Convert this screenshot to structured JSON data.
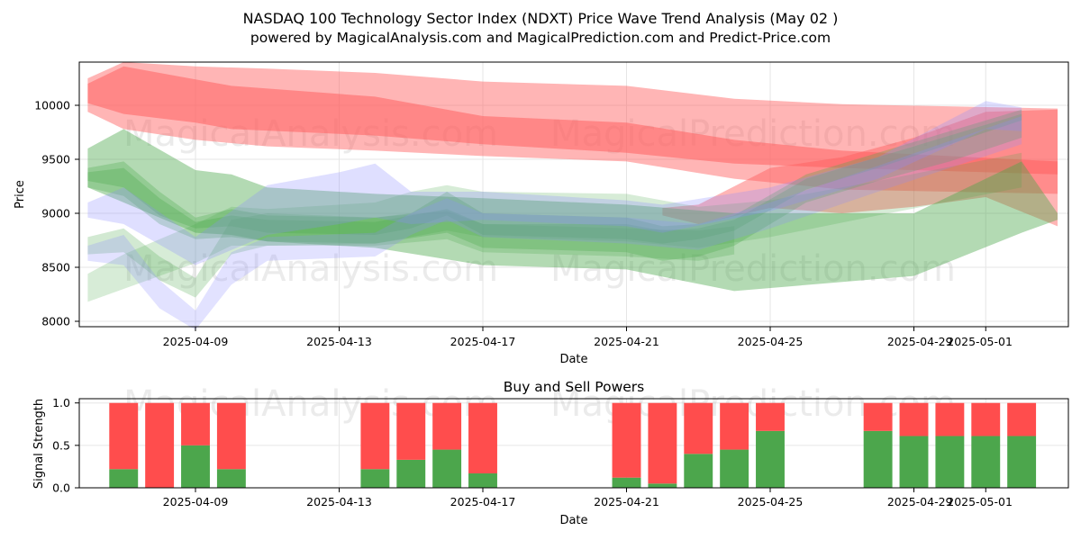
{
  "chart_data": [
    {
      "type": "area",
      "title": "NASDAQ 100 Technology Sector Index (NDXT) Price Wave Trend Analysis (May 02 )",
      "subtitle": "powered by MagicalAnalysis.com and MagicalPrediction.com and Predict-Price.com",
      "xlabel": "Date",
      "ylabel": "Price",
      "x_ticks": [
        "2025-04-09",
        "2025-04-13",
        "2025-04-17",
        "2025-04-21",
        "2025-04-25",
        "2025-04-29",
        "2025-05-01"
      ],
      "y_ticks": [
        8000,
        8500,
        9000,
        9500,
        10000
      ],
      "ylim": [
        7950,
        10400
      ],
      "watermarks": [
        "MagicalAnalysis.com",
        "MagicalPrediction.com"
      ],
      "colors": {
        "red": "#ff5a5a",
        "green": "#4aa84a",
        "blue": "#8c8cff",
        "grid": "#e6e6e6"
      },
      "series": [
        {
          "name": "red-band-1",
          "color": "red",
          "opacity": 0.45,
          "x": [
            "2025-04-06",
            "2025-04-07",
            "2025-04-09",
            "2025-04-11",
            "2025-04-14",
            "2025-04-17",
            "2025-04-21",
            "2025-04-24",
            "2025-04-27",
            "2025-05-03"
          ],
          "upper": [
            10250,
            10400,
            10360,
            10340,
            10300,
            10220,
            10180,
            10060,
            10010,
            9970
          ],
          "lower": [
            9940,
            9780,
            9680,
            9620,
            9580,
            9530,
            9480,
            9320,
            9220,
            9180
          ]
        },
        {
          "name": "red-band-2",
          "color": "red",
          "opacity": 0.5,
          "x": [
            "2025-04-06",
            "2025-04-07",
            "2025-04-09",
            "2025-04-10",
            "2025-04-14",
            "2025-04-17",
            "2025-04-21",
            "2025-04-24",
            "2025-04-27",
            "2025-05-03"
          ],
          "upper": [
            10200,
            10360,
            10240,
            10180,
            10080,
            9900,
            9840,
            9680,
            9580,
            9480
          ],
          "lower": [
            10020,
            9920,
            9840,
            9780,
            9720,
            9640,
            9560,
            9460,
            9420,
            9360
          ]
        },
        {
          "name": "red-band-3",
          "color": "red",
          "opacity": 0.45,
          "x": [
            "2025-04-22",
            "2025-04-23",
            "2025-04-25",
            "2025-04-27",
            "2025-04-29",
            "2025-05-01",
            "2025-05-03"
          ],
          "upper": [
            9050,
            9080,
            9420,
            9520,
            9700,
            9940,
            9960
          ],
          "lower": [
            8980,
            8900,
            9050,
            9000,
            9060,
            9150,
            8880
          ]
        },
        {
          "name": "green-band-1",
          "color": "green",
          "opacity": 0.42,
          "x": [
            "2025-04-06",
            "2025-04-07",
            "2025-04-09",
            "2025-04-10",
            "2025-04-11",
            "2025-04-14",
            "2025-04-17",
            "2025-04-21",
            "2025-04-24",
            "2025-04-29",
            "2025-05-02",
            "2025-05-03"
          ],
          "upper": [
            9600,
            9780,
            9400,
            9360,
            9240,
            9180,
            9140,
            9080,
            9000,
            9000,
            9480,
            9000
          ],
          "lower": [
            9240,
            9100,
            8820,
            8800,
            8740,
            8680,
            8520,
            8480,
            8280,
            8420,
            8820,
            8940
          ]
        },
        {
          "name": "green-band-2",
          "color": "green",
          "opacity": 0.3,
          "x": [
            "2025-04-06",
            "2025-04-07",
            "2025-04-08",
            "2025-04-09",
            "2025-04-10",
            "2025-04-11",
            "2025-04-14",
            "2025-04-15",
            "2025-04-16",
            "2025-04-17",
            "2025-04-21",
            "2025-04-22",
            "2025-04-23",
            "2025-04-24",
            "2025-04-26",
            "2025-04-28",
            "2025-04-30",
            "2025-05-02"
          ],
          "upper": [
            9420,
            9480,
            9200,
            8960,
            9040,
            8980,
            8960,
            9000,
            9200,
            9000,
            8960,
            8880,
            8900,
            8980,
            9360,
            9560,
            9760,
            9960
          ],
          "lower": [
            9300,
            9240,
            8980,
            8860,
            8880,
            8820,
            8800,
            8860,
            8980,
            8800,
            8760,
            8720,
            8760,
            8840,
            9220,
            9420,
            9640,
            9860
          ]
        },
        {
          "name": "green-band-3",
          "color": "green",
          "opacity": 0.3,
          "x": [
            "2025-04-06",
            "2025-04-07",
            "2025-04-08",
            "2025-04-09",
            "2025-04-10",
            "2025-04-11",
            "2025-04-14",
            "2025-04-16",
            "2025-04-17",
            "2025-04-21",
            "2025-04-22",
            "2025-04-23",
            "2025-04-24",
            "2025-04-26",
            "2025-04-28",
            "2025-04-30",
            "2025-05-02"
          ],
          "upper": [
            9380,
            9420,
            9140,
            8920,
            8980,
            8940,
            8920,
            9040,
            8900,
            8900,
            8840,
            8860,
            8940,
            9320,
            9520,
            9720,
            9920
          ],
          "lower": [
            9240,
            9160,
            8900,
            8760,
            8780,
            8740,
            8720,
            8820,
            8680,
            8640,
            8560,
            8600,
            8700,
            9100,
            9300,
            9480,
            9700
          ]
        },
        {
          "name": "green-band-4",
          "color": "green",
          "opacity": 0.22,
          "x": [
            "2025-04-06",
            "2025-04-07",
            "2025-04-09",
            "2025-04-10",
            "2025-04-11",
            "2025-04-14",
            "2025-04-15",
            "2025-04-16",
            "2025-04-17",
            "2025-04-21",
            "2025-04-23",
            "2025-04-25",
            "2025-04-28",
            "2025-05-02"
          ],
          "upper": [
            8440,
            8620,
            8900,
            9060,
            9040,
            9100,
            9200,
            9260,
            9200,
            9180,
            9060,
            9120,
            9300,
            9560
          ],
          "lower": [
            8180,
            8300,
            8540,
            8700,
            8700,
            8720,
            8780,
            8840,
            8780,
            8740,
            8680,
            8780,
            8980,
            9240
          ]
        },
        {
          "name": "green-band-5",
          "color": "green",
          "opacity": 0.25,
          "x": [
            "2025-04-06",
            "2025-04-07",
            "2025-04-08",
            "2025-04-09",
            "2025-04-10",
            "2025-04-11",
            "2025-04-14",
            "2025-04-16",
            "2025-04-17",
            "2025-04-21",
            "2025-04-23",
            "2025-04-24"
          ],
          "upper": [
            8780,
            8860,
            8600,
            8400,
            8940,
            9000,
            8960,
            9020,
            8900,
            8860,
            8840,
            8880
          ],
          "lower": [
            8620,
            8640,
            8380,
            8220,
            8620,
            8700,
            8700,
            8760,
            8640,
            8600,
            8560,
            8620
          ]
        },
        {
          "name": "blue-band-1",
          "color": "blue",
          "opacity": 0.28,
          "x": [
            "2025-04-06",
            "2025-04-07",
            "2025-04-09",
            "2025-04-11",
            "2025-04-13",
            "2025-04-14",
            "2025-04-15",
            "2025-04-17",
            "2025-04-21",
            "2025-04-22",
            "2025-04-25",
            "2025-04-28",
            "2025-05-01",
            "2025-05-02"
          ],
          "upper": [
            9100,
            9240,
            8780,
            9260,
            9380,
            9460,
            9200,
            9200,
            9120,
            9080,
            9240,
            9520,
            10040,
            9980
          ],
          "lower": [
            8960,
            8900,
            8520,
            8800,
            8900,
            8960,
            8900,
            8940,
            8880,
            8820,
            9020,
            9320,
            9780,
            9760
          ]
        },
        {
          "name": "blue-band-2",
          "color": "blue",
          "opacity": 0.25,
          "x": [
            "2025-04-06",
            "2025-04-07",
            "2025-04-08",
            "2025-04-09",
            "2025-04-10",
            "2025-04-11",
            "2025-04-14",
            "2025-04-15",
            "2025-04-16",
            "2025-04-17",
            "2025-04-21",
            "2025-04-23",
            "2025-04-25",
            "2025-04-28",
            "2025-05-02"
          ],
          "upper": [
            8700,
            8800,
            8380,
            8100,
            8640,
            8780,
            8820,
            9000,
            9140,
            9000,
            8960,
            8900,
            9100,
            9440,
            9900
          ],
          "lower": [
            8560,
            8520,
            8120,
            7920,
            8340,
            8560,
            8600,
            8800,
            8940,
            8780,
            8720,
            8660,
            8860,
            9200,
            9640
          ]
        }
      ]
    },
    {
      "type": "bar",
      "title": "Buy and Sell Powers",
      "xlabel": "Date",
      "ylabel": "Signal Strength",
      "ylim": [
        0,
        1.05
      ],
      "y_ticks": [
        "0.0",
        "0.5",
        "1.0"
      ],
      "x_ticks": [
        "2025-04-09",
        "2025-04-13",
        "2025-04-17",
        "2025-04-21",
        "2025-04-25",
        "2025-04-29",
        "2025-05-01"
      ],
      "colors": {
        "buy": "#4ca64c",
        "sell": "#ff4d4d"
      },
      "bars": [
        {
          "date": "2025-04-07",
          "buy": 0.22,
          "sell": 0.78
        },
        {
          "date": "2025-04-08",
          "buy": 0.0,
          "sell": 1.0
        },
        {
          "date": "2025-04-09",
          "buy": 0.5,
          "sell": 0.5
        },
        {
          "date": "2025-04-10",
          "buy": 0.22,
          "sell": 0.78
        },
        {
          "date": "2025-04-14",
          "buy": 0.22,
          "sell": 0.78
        },
        {
          "date": "2025-04-15",
          "buy": 0.33,
          "sell": 0.67
        },
        {
          "date": "2025-04-16",
          "buy": 0.45,
          "sell": 0.55
        },
        {
          "date": "2025-04-17",
          "buy": 0.17,
          "sell": 0.83
        },
        {
          "date": "2025-04-21",
          "buy": 0.12,
          "sell": 0.88
        },
        {
          "date": "2025-04-22",
          "buy": 0.05,
          "sell": 0.95
        },
        {
          "date": "2025-04-23",
          "buy": 0.4,
          "sell": 0.6
        },
        {
          "date": "2025-04-24",
          "buy": 0.45,
          "sell": 0.55
        },
        {
          "date": "2025-04-25",
          "buy": 0.67,
          "sell": 0.33
        },
        {
          "date": "2025-04-28",
          "buy": 0.67,
          "sell": 0.33
        },
        {
          "date": "2025-04-29",
          "buy": 0.61,
          "sell": 0.39
        },
        {
          "date": "2025-04-30",
          "buy": 0.61,
          "sell": 0.39
        },
        {
          "date": "2025-05-01",
          "buy": 0.61,
          "sell": 0.39
        },
        {
          "date": "2025-05-02",
          "buy": 0.61,
          "sell": 0.39
        }
      ]
    }
  ]
}
